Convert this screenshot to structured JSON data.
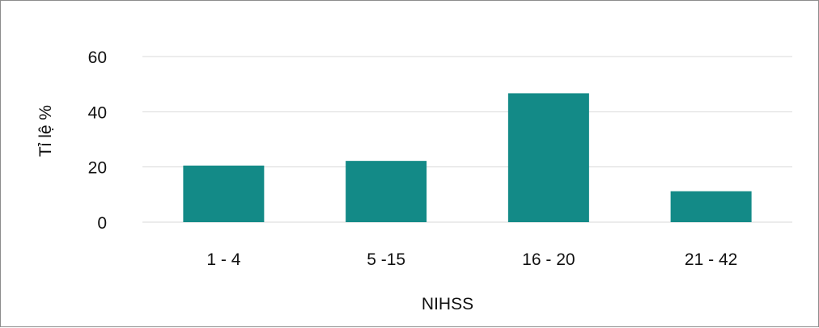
{
  "chart_data": {
    "type": "bar",
    "categories": [
      "1 - 4",
      "5 -15",
      "16 - 20",
      "21 - 42"
    ],
    "values": [
      20.5,
      22.2,
      46.7,
      11.2
    ],
    "title": "",
    "xlabel": "NIHSS",
    "ylabel": "Tỉ lệ %",
    "ylim": [
      0,
      60
    ],
    "yticks": [
      "0",
      "20",
      "40",
      "60"
    ],
    "grid": true,
    "legend": "none",
    "colors": {
      "bar": "#138a87",
      "grid": "#d9d9d9",
      "border": "#8c8c8c"
    }
  }
}
